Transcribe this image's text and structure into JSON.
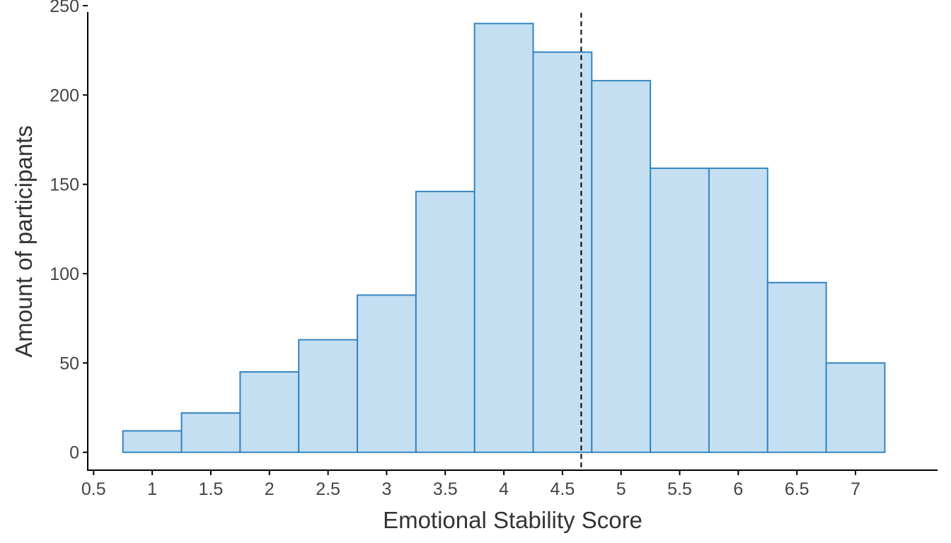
{
  "chart_data": {
    "type": "bar",
    "title": "",
    "xlabel": "Emotional Stability Score",
    "ylabel": "Amount of participants",
    "x_ticks": [
      "0.5",
      "1",
      "1.5",
      "2",
      "2.5",
      "3",
      "3.5",
      "4",
      "4.5",
      "5",
      "5.5",
      "6",
      "6.5",
      "7"
    ],
    "y_ticks": [
      "0",
      "50",
      "100",
      "150",
      "200",
      "250"
    ],
    "xlim": [
      0.45,
      7.7
    ],
    "ylim": [
      -10,
      250
    ],
    "bin_width": 0.5,
    "categories": [
      "1",
      "1.5",
      "2",
      "2.5",
      "3",
      "3.5",
      "4",
      "4.5",
      "5",
      "5.5",
      "6",
      "6.5",
      "7"
    ],
    "bin_centers": [
      1,
      1.5,
      2,
      2.5,
      3,
      3.5,
      4,
      4.5,
      5,
      5.5,
      6,
      6.5,
      7
    ],
    "values": [
      12,
      22,
      45,
      63,
      88,
      146,
      240,
      224,
      208,
      159,
      159,
      95,
      50
    ],
    "reference_line": {
      "x": 4.66,
      "style": "dashed"
    },
    "grid": false,
    "legend": "none",
    "colors": {
      "bar_fill": "#c3dff1",
      "bar_edge": "#3585c0",
      "reference_line": "#000000"
    }
  }
}
